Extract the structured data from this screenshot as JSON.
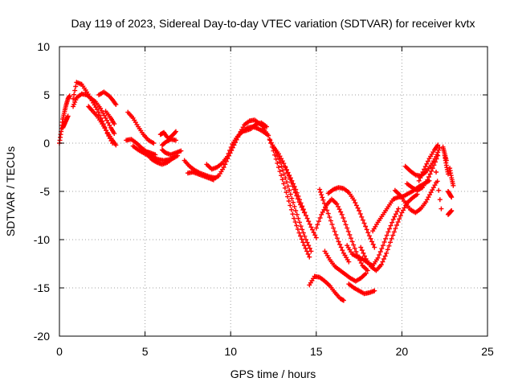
{
  "chart_data": {
    "type": "scatter",
    "title": "Day 119 of 2023, Sidereal Day-to-day VTEC variation (SDTVAR) for receiver kvtx",
    "xlabel": "GPS time / hours",
    "ylabel": "SDTVAR / TECUs",
    "xlim": [
      0,
      25
    ],
    "ylim": [
      -20,
      10
    ],
    "xticks": [
      "0",
      "5",
      "10",
      "15",
      "20",
      "25"
    ],
    "yticks": [
      "-20",
      "-15",
      "-10",
      "-5",
      "0",
      "5",
      "10"
    ],
    "grid": true,
    "marker": "plus",
    "color": "#ff0000",
    "series": [
      {
        "x": [
          0.0,
          0.1,
          0.2,
          0.3,
          0.4,
          0.5,
          0.6
        ],
        "y": [
          0.0,
          1.2,
          2.5,
          3.3,
          4.0,
          4.6,
          4.9
        ]
      },
      {
        "x": [
          0.2,
          0.3,
          0.4,
          0.5
        ],
        "y": [
          1.6,
          2.0,
          2.4,
          2.8
        ]
      },
      {
        "x": [
          0.8,
          1.0,
          1.3,
          1.6,
          1.9,
          2.2,
          2.5,
          2.8,
          3.1
        ],
        "y": [
          4.6,
          6.3,
          6.1,
          5.3,
          4.4,
          3.5,
          2.3,
          1.0,
          0.0
        ]
      },
      {
        "x": [
          0.8,
          1.0,
          1.3,
          1.6,
          1.8,
          2.1,
          2.4,
          2.7,
          3.0,
          3.2
        ],
        "y": [
          3.8,
          4.7,
          5.1,
          5.0,
          4.7,
          4.3,
          3.6,
          2.6,
          1.6,
          1.0
        ]
      },
      {
        "x": [
          1.7,
          1.9,
          2.2,
          2.5,
          2.8,
          3.1,
          3.3
        ],
        "y": [
          3.8,
          3.4,
          2.8,
          2.0,
          1.1,
          0.3,
          -0.2
        ]
      },
      {
        "x": [
          2.3,
          2.6,
          2.9,
          3.1,
          3.3
        ],
        "y": [
          5.0,
          5.3,
          4.9,
          4.5,
          4.0
        ]
      },
      {
        "x": [
          2.7,
          3.0,
          3.2
        ],
        "y": [
          3.3,
          2.6,
          2.0
        ]
      },
      {
        "x": [
          4.0,
          4.3,
          4.6,
          4.9,
          5.2,
          5.5
        ],
        "y": [
          3.2,
          2.6,
          1.7,
          0.9,
          0.3,
          0.0
        ]
      },
      {
        "x": [
          3.9,
          4.2,
          4.5,
          4.8,
          5.1,
          5.3,
          5.6
        ],
        "y": [
          0.3,
          0.4,
          0.0,
          -0.5,
          -0.9,
          -1.0,
          -1.2
        ]
      },
      {
        "x": [
          4.3,
          4.6,
          4.9,
          5.2,
          5.5,
          5.8,
          6.1,
          6.4,
          6.7
        ],
        "y": [
          -0.3,
          -0.7,
          -1.0,
          -1.3,
          -1.5,
          -1.7,
          -1.8,
          -1.7,
          -1.5
        ]
      },
      {
        "x": [
          4.8,
          5.1,
          5.4,
          5.7,
          6.0,
          6.3,
          6.6,
          6.9
        ],
        "y": [
          -0.5,
          -1.1,
          -1.7,
          -2.0,
          -2.2,
          -2.0,
          -1.6,
          -1.3
        ]
      },
      {
        "x": [
          5.9,
          6.1,
          6.3
        ],
        "y": [
          0.9,
          1.1,
          0.6
        ]
      },
      {
        "x": [
          6.4,
          6.6,
          6.8
        ],
        "y": [
          0.5,
          0.8,
          1.2
        ]
      },
      {
        "x": [
          6.0,
          6.2,
          6.5,
          6.8
        ],
        "y": [
          -0.2,
          0.1,
          0.4,
          0.3
        ]
      },
      {
        "x": [
          6.0,
          6.2,
          6.5,
          6.8,
          7.1
        ],
        "y": [
          -0.7,
          -1.0,
          -1.2,
          -1.0,
          -0.8
        ]
      },
      {
        "x": [
          7.3,
          7.6,
          7.9,
          8.2,
          8.5,
          8.8,
          9.1
        ],
        "y": [
          -1.8,
          -2.4,
          -2.8,
          -3.1,
          -3.3,
          -3.5,
          -3.6
        ]
      },
      {
        "x": [
          7.5,
          7.8,
          8.1,
          8.4,
          8.7,
          9.0
        ],
        "y": [
          -3.1,
          -3.0,
          -3.2,
          -3.4,
          -3.6,
          -3.8
        ]
      },
      {
        "x": [
          8.6,
          8.9,
          9.2,
          9.5,
          9.8,
          10.1,
          10.4,
          10.7,
          11.0,
          11.3,
          11.6,
          11.9,
          12.2
        ],
        "y": [
          -2.2,
          -2.7,
          -2.5,
          -2.1,
          -1.4,
          -0.1,
          0.7,
          1.2,
          1.6,
          1.7,
          1.5,
          1.2,
          0.8
        ]
      },
      {
        "x": [
          9.0,
          9.3,
          9.6,
          9.9,
          10.2,
          10.5,
          10.8,
          11.1,
          11.4,
          11.7,
          12.0
        ],
        "y": [
          -3.7,
          -3.4,
          -2.5,
          -1.3,
          -0.2,
          0.9,
          1.9,
          2.3,
          2.4,
          2.0,
          1.6
        ]
      },
      {
        "x": [
          10.6,
          10.9,
          11.2,
          11.5,
          11.8,
          12.1
        ],
        "y": [
          1.2,
          1.3,
          1.5,
          2.0,
          2.1,
          1.7
        ]
      },
      {
        "x": [
          11.9,
          12.2,
          12.5,
          12.8,
          13.1,
          13.4,
          13.7,
          14.0,
          14.3,
          14.6
        ],
        "y": [
          1.5,
          0.8,
          -0.8,
          -2.5,
          -4.2,
          -6.0,
          -7.8,
          -9.3,
          -10.6,
          -11.8
        ]
      },
      {
        "x": [
          12.3,
          12.6,
          12.9,
          13.2,
          13.5,
          13.8,
          14.1,
          14.4,
          14.7
        ],
        "y": [
          0.3,
          -0.7,
          -2.0,
          -3.6,
          -5.3,
          -7.0,
          -8.6,
          -10.0,
          -11.2
        ]
      },
      {
        "x": [
          12.5,
          12.8,
          13.1,
          13.4,
          13.7,
          14.0,
          14.3
        ],
        "y": [
          -0.4,
          -1.1,
          -2.1,
          -3.4,
          -4.8,
          -6.1,
          -7.2
        ]
      },
      {
        "x": [
          13.2,
          13.5,
          13.8,
          14.1,
          14.4,
          14.7,
          15.0
        ],
        "y": [
          -2.5,
          -3.6,
          -4.8,
          -6.2,
          -7.5,
          -8.7,
          -9.8
        ]
      },
      {
        "x": [
          14.6,
          14.9,
          15.2,
          15.5,
          15.8,
          16.1,
          16.4,
          16.6
        ],
        "y": [
          -14.7,
          -13.8,
          -13.9,
          -14.3,
          -14.8,
          -15.5,
          -16.1,
          -16.3
        ]
      },
      {
        "x": [
          15.0,
          15.3,
          15.6,
          15.9,
          16.2,
          16.5,
          16.8,
          17.1,
          17.4,
          17.7,
          18.0
        ],
        "y": [
          -8.8,
          -7.4,
          -6.4,
          -5.8,
          -6.3,
          -7.4,
          -8.8,
          -10.2,
          -11.6,
          -12.7,
          -13.2
        ]
      },
      {
        "x": [
          15.2,
          15.4,
          15.7,
          16.0,
          16.3,
          16.6,
          16.9
        ],
        "y": [
          -4.8,
          -5.9,
          -7.3,
          -8.8,
          -10.2,
          -11.4,
          -12.3
        ]
      },
      {
        "x": [
          15.5,
          15.8,
          16.1,
          16.4,
          16.7,
          17.0,
          17.3,
          17.6,
          17.9
        ],
        "y": [
          -11.2,
          -12.1,
          -12.8,
          -13.2,
          -13.6,
          -14.0,
          -14.3,
          -14.0,
          -13.5
        ]
      },
      {
        "x": [
          15.7,
          16.0,
          16.3,
          16.6,
          16.9,
          17.2,
          17.5,
          17.8,
          18.1,
          18.4
        ],
        "y": [
          -5.2,
          -4.8,
          -4.6,
          -4.7,
          -5.1,
          -5.9,
          -7.0,
          -8.3,
          -9.6,
          -10.8
        ]
      },
      {
        "x": [
          16.8,
          17.1,
          17.4,
          17.7,
          18.0,
          18.3,
          18.6,
          18.9,
          19.2,
          19.5,
          19.8
        ],
        "y": [
          -10.6,
          -11.5,
          -11.8,
          -12.0,
          -12.4,
          -12.7,
          -11.9,
          -10.6,
          -9.2,
          -7.9,
          -6.8
        ]
      },
      {
        "x": [
          17.6,
          17.9,
          18.2,
          18.5,
          18.8,
          19.1,
          19.4,
          19.7,
          20.0,
          20.3,
          20.6,
          20.9
        ],
        "y": [
          -10.8,
          -12.0,
          -12.8,
          -13.2,
          -12.6,
          -11.4,
          -9.9,
          -8.5,
          -7.2,
          -6.2,
          -5.7,
          -5.3
        ]
      },
      {
        "x": [
          16.9,
          17.2,
          17.5,
          17.8,
          18.1,
          18.4
        ],
        "y": [
          -14.6,
          -15.0,
          -15.3,
          -15.6,
          -15.5,
          -15.3
        ]
      },
      {
        "x": [
          18.3,
          18.6,
          18.9,
          19.2,
          19.5,
          19.8,
          20.1,
          20.4,
          20.7,
          21.0,
          21.3,
          21.6
        ],
        "y": [
          -9.1,
          -8.2,
          -7.4,
          -6.6,
          -5.8,
          -5.6,
          -5.5,
          -5.2,
          -4.9,
          -4.5,
          -4.2,
          -3.9
        ]
      },
      {
        "x": [
          19.6,
          19.9,
          20.2,
          20.5,
          20.8,
          21.1,
          21.4,
          21.7,
          22.0
        ],
        "y": [
          -4.9,
          -5.4,
          -6.2,
          -6.9,
          -7.2,
          -6.8,
          -6.1,
          -5.1,
          -4.1
        ]
      },
      {
        "x": [
          20.2,
          20.5,
          20.8,
          21.1,
          21.4,
          21.7,
          22.0,
          22.2
        ],
        "y": [
          -2.4,
          -2.9,
          -3.3,
          -3.4,
          -3.0,
          -2.3,
          -1.4,
          -0.5
        ]
      },
      {
        "x": [
          20.3,
          20.6,
          20.9,
          21.2,
          21.5,
          21.8,
          22.1
        ],
        "y": [
          -4.2,
          -4.6,
          -4.9,
          -4.6,
          -3.8,
          -2.6,
          -1.3
        ]
      },
      {
        "x": [
          21.0,
          21.3,
          21.6,
          21.9,
          22.1
        ],
        "y": [
          -3.9,
          -2.7,
          -1.6,
          -0.7,
          -0.2
        ]
      },
      {
        "x": [
          22.5,
          22.6,
          22.7
        ],
        "y": [
          -1.3,
          -2.3,
          -3.2
        ]
      },
      {
        "x": [
          22.4,
          22.5,
          22.6
        ],
        "y": [
          -0.4,
          -1.1,
          -1.8
        ]
      },
      {
        "x": [
          22.8,
          22.9,
          23.0
        ],
        "y": [
          -2.6,
          -3.6,
          -4.4
        ]
      },
      {
        "x": [
          22.7,
          22.8,
          22.9
        ],
        "y": [
          -5.0,
          -5.3,
          -5.6
        ]
      },
      {
        "x": [
          22.7,
          22.8,
          22.9
        ],
        "y": [
          -7.4,
          -7.2,
          -7.0
        ]
      },
      {
        "x": [
          22.0,
          22.3
        ],
        "y": [
          -3.0,
          -6.8
        ]
      }
    ]
  }
}
